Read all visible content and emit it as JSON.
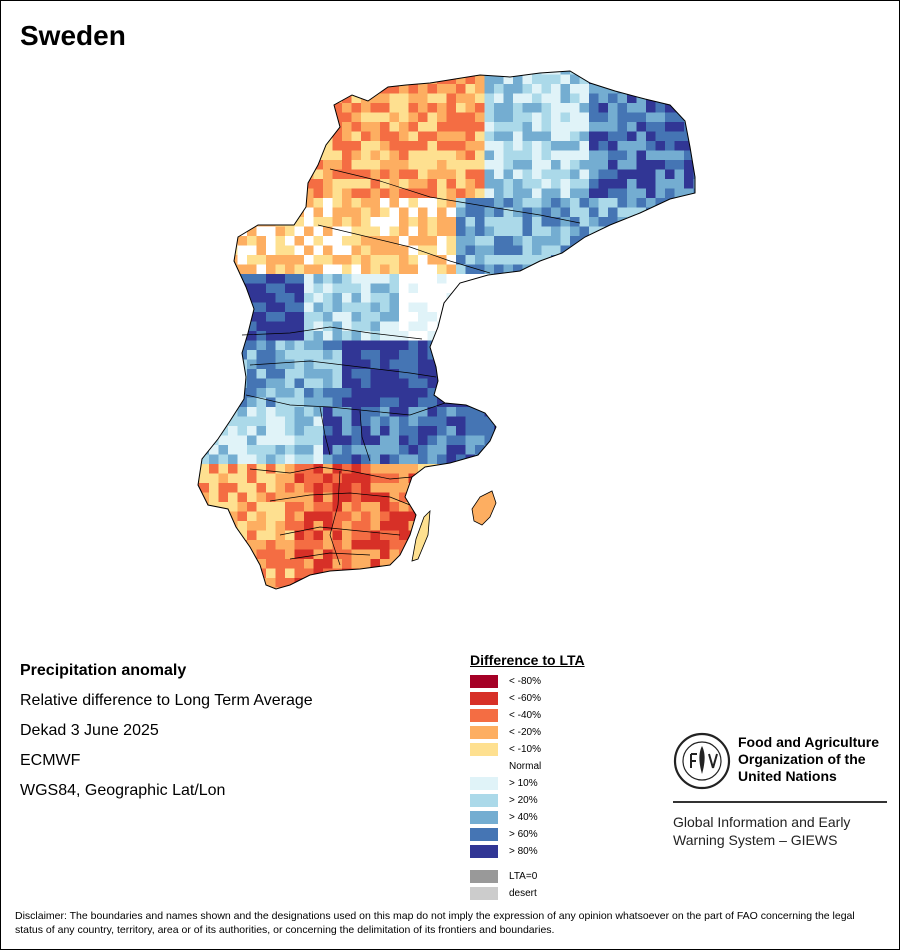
{
  "title": "Sweden",
  "info": {
    "heading": "Precipitation anomaly",
    "line1": "Relative difference to Long Term Average",
    "line2": "Dekad 3 June 2025",
    "line3": "ECMWF",
    "line4": "WGS84, Geographic Lat/Lon"
  },
  "legend": {
    "title": "Difference to LTA",
    "items": [
      {
        "label": "< -80%",
        "color": "#a50026"
      },
      {
        "label": "< -60%",
        "color": "#d73027"
      },
      {
        "label": "< -40%",
        "color": "#f46d43"
      },
      {
        "label": "< -20%",
        "color": "#fdae61"
      },
      {
        "label": "< -10%",
        "color": "#fee090"
      },
      {
        "label": "Normal",
        "color": "#ffffff"
      },
      {
        "label": "> 10%",
        "color": "#e0f3f8"
      },
      {
        "label": "> 20%",
        "color": "#abd9e9"
      },
      {
        "label": "> 40%",
        "color": "#74add1"
      },
      {
        "label": "> 60%",
        "color": "#4575b4"
      },
      {
        "label": "> 80%",
        "color": "#313695"
      }
    ],
    "extra": [
      {
        "label": "LTA=0",
        "color": "#999999"
      },
      {
        "label": "desert",
        "color": "#cccccc"
      }
    ]
  },
  "org": {
    "name_line1": "Food and Agriculture",
    "name_line2": "Organization of the",
    "name_line3": "United Nations",
    "system_line1": "Global Information and Early",
    "system_line2": "Warning System – GIEWS"
  },
  "disclaimer": "Disclaimer: The boundaries and names shown and the designations used on this map do not imply the expression of any opinion whatsoever on the part of FAO concerning the legal status of any country, territory, area or of its authorities, or concerning the delimitation of its frontiers and boundaries."
}
